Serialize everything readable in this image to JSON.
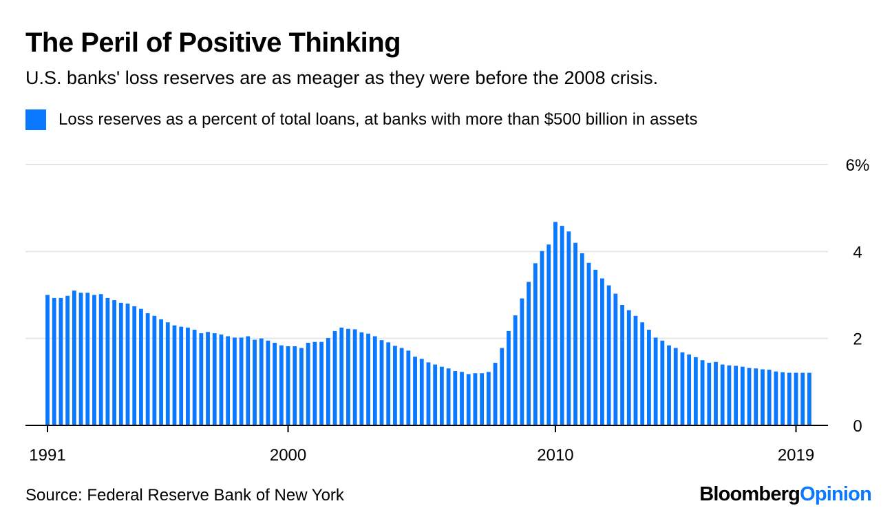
{
  "chart_data": {
    "type": "bar",
    "title": "The Peril of Positive Thinking",
    "subtitle": "U.S. banks' loss reserves are as meager as they were before the 2008 crisis.",
    "legend": "Loss reserves as a percent of total loans, at banks with more than $500 billion in assets",
    "series_color": "#0b79ff",
    "x_start": 1991.0,
    "x_step": 0.25,
    "values": [
      3.0,
      2.93,
      2.93,
      2.98,
      3.1,
      3.05,
      3.05,
      3.0,
      3.02,
      2.93,
      2.88,
      2.82,
      2.8,
      2.74,
      2.68,
      2.58,
      2.52,
      2.44,
      2.37,
      2.3,
      2.27,
      2.25,
      2.2,
      2.12,
      2.15,
      2.12,
      2.09,
      2.05,
      2.02,
      2.02,
      2.05,
      1.97,
      2.0,
      1.95,
      1.9,
      1.84,
      1.82,
      1.82,
      1.78,
      1.9,
      1.92,
      1.92,
      2.01,
      2.17,
      2.25,
      2.22,
      2.21,
      2.14,
      2.11,
      2.05,
      1.96,
      1.91,
      1.83,
      1.78,
      1.72,
      1.58,
      1.53,
      1.45,
      1.4,
      1.35,
      1.31,
      1.25,
      1.23,
      1.18,
      1.2,
      1.2,
      1.23,
      1.44,
      1.78,
      2.17,
      2.53,
      2.92,
      3.3,
      3.73,
      4.01,
      4.16,
      4.68,
      4.59,
      4.46,
      4.2,
      3.96,
      3.74,
      3.58,
      3.38,
      3.22,
      3.03,
      2.77,
      2.65,
      2.52,
      2.37,
      2.2,
      2.02,
      1.95,
      1.84,
      1.78,
      1.68,
      1.63,
      1.57,
      1.5,
      1.44,
      1.46,
      1.4,
      1.38,
      1.37,
      1.35,
      1.32,
      1.31,
      1.29,
      1.28,
      1.24,
      1.22,
      1.21,
      1.21,
      1.21,
      1.21
    ],
    "x_ticks": [
      "1991",
      "2000",
      "2010",
      "2019"
    ],
    "y_ticks": [
      "6%",
      "4",
      "2",
      "0"
    ],
    "ylim": [
      0,
      6
    ],
    "grid": true,
    "source": "Source: Federal Reserve Bank of New York"
  },
  "brand": {
    "part1": "Bloomberg",
    "part2": "Opinion"
  }
}
